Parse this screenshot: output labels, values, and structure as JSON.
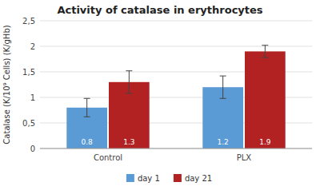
{
  "chart_data": {
    "type": "bar",
    "title": "Activity of catalase in erythrocytes",
    "ylabel": "Catalase (K/10⁹ Cells) (K/gHb)",
    "categories": [
      "Control",
      "PLX"
    ],
    "series": [
      {
        "name": "day 1",
        "color": "#5b9bd5",
        "values": [
          0.8,
          1.2
        ],
        "errors": [
          0.18,
          0.22
        ]
      },
      {
        "name": "day 21",
        "color": "#b22222",
        "values": [
          1.3,
          1.9
        ],
        "errors": [
          0.22,
          0.12
        ]
      }
    ],
    "ylim": [
      0,
      2.5
    ],
    "yticks": [
      0,
      {
        "value": 0.5,
        "label": "0,5"
      },
      1,
      {
        "value": 1.5,
        "label": "1,5"
      },
      2,
      {
        "value": 2.5,
        "label": "2,5"
      }
    ],
    "grid": true,
    "legend": "bottom",
    "data_labels": true
  }
}
